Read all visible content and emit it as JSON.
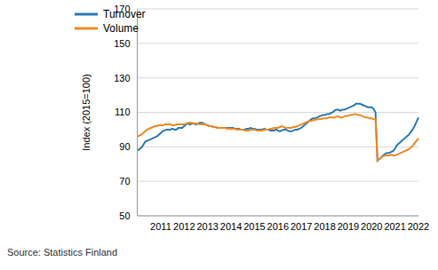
{
  "chart_data": {
    "type": "line",
    "y_label": "Index (2015=100)",
    "source": "Source: Statistics Finland",
    "legend": "upper left",
    "grid": true,
    "ylim": [
      50,
      170
    ],
    "yticks": [
      50,
      70,
      90,
      110,
      130,
      150,
      170
    ],
    "categories": [
      null,
      null,
      null,
      null,
      null,
      null,
      null,
      null,
      null,
      null,
      null,
      null,
      "2011",
      null,
      null,
      null,
      null,
      null,
      null,
      null,
      null,
      null,
      null,
      null,
      "2012",
      null,
      null,
      null,
      null,
      null,
      null,
      null,
      null,
      null,
      null,
      null,
      "2013",
      null,
      null,
      null,
      null,
      null,
      null,
      null,
      null,
      null,
      null,
      null,
      "2014",
      null,
      null,
      null,
      null,
      null,
      null,
      null,
      null,
      null,
      null,
      null,
      "2015",
      null,
      null,
      null,
      null,
      null,
      null,
      null,
      null,
      null,
      null,
      null,
      "2016",
      null,
      null,
      null,
      null,
      null,
      null,
      null,
      null,
      null,
      null,
      null,
      "2017",
      null,
      null,
      null,
      null,
      null,
      null,
      null,
      null,
      null,
      null,
      null,
      "2018",
      null,
      null,
      null,
      null,
      null,
      null,
      null,
      null,
      null,
      null,
      null,
      "2019",
      null,
      null,
      null,
      null,
      null,
      null,
      null,
      null,
      null,
      null,
      null,
      "2020",
      null,
      null,
      null,
      null,
      null,
      null,
      null,
      null,
      null,
      null,
      null,
      "2021",
      null,
      null,
      null,
      null,
      null,
      null,
      null,
      null,
      null,
      null,
      null,
      "2022"
    ],
    "series": [
      {
        "name": "Turnover",
        "color": "#2a7ab9",
        "values": [
          88,
          88.5,
          89.5,
          91,
          93,
          93.5,
          94,
          94.5,
          95,
          95.5,
          96,
          97,
          98,
          99,
          99.5,
          100,
          100,
          100,
          100.5,
          100,
          100,
          101,
          101,
          101,
          102,
          103,
          103.5,
          103,
          103.5,
          103.5,
          103,
          103.5,
          104,
          104,
          103.5,
          103,
          102.5,
          102,
          102,
          101.5,
          101.5,
          101,
          101,
          101,
          101,
          101,
          101,
          101,
          101,
          101,
          100.5,
          100.5,
          100.5,
          100,
          100,
          100,
          100.5,
          100.5,
          101,
          100.5,
          100.5,
          100,
          100,
          100,
          100,
          100.5,
          100,
          100,
          99.5,
          99.5,
          99.5,
          100,
          99.5,
          99,
          99.5,
          100,
          100,
          99.5,
          99,
          99,
          99.5,
          100,
          100,
          100.5,
          101,
          102,
          103,
          104,
          105,
          106,
          106.5,
          106.5,
          107,
          107.5,
          108,
          108.5,
          108.5,
          109,
          109,
          109.5,
          110,
          111,
          111.5,
          111.5,
          111,
          111.5,
          111.5,
          112,
          112.5,
          113,
          113.5,
          114,
          115,
          115,
          115,
          114.5,
          114,
          113.5,
          113,
          113,
          113,
          112,
          110,
          82,
          83,
          84,
          85,
          86,
          86.5,
          86.5,
          87,
          87.5,
          89,
          91,
          92,
          93,
          94,
          95,
          96,
          97,
          98.5,
          100,
          102,
          104.5,
          107
        ]
      },
      {
        "name": "Volume",
        "color": "#f08a24",
        "values": [
          96,
          96.5,
          97,
          98,
          99,
          100,
          100.5,
          101,
          101.5,
          102,
          102,
          102.5,
          102.5,
          102.5,
          103,
          103,
          103,
          103,
          102.5,
          102.5,
          103,
          103,
          103,
          103,
          103,
          103.5,
          104,
          104,
          104,
          103.5,
          103.5,
          103.5,
          103,
          103,
          103,
          103,
          102.5,
          102,
          102,
          101.5,
          101.5,
          101,
          101,
          101,
          101,
          101,
          100.5,
          100.5,
          100.5,
          100.5,
          100.5,
          100,
          100,
          100,
          100,
          99.5,
          99.5,
          99.5,
          100,
          100,
          100,
          99.5,
          99.5,
          99.5,
          99.5,
          100,
          100,
          100,
          100.5,
          100.5,
          101,
          101,
          101,
          101.5,
          102,
          101.5,
          101,
          101,
          101,
          101,
          101.5,
          101.5,
          102,
          102.5,
          103,
          103.5,
          104,
          104.5,
          105,
          105,
          105.5,
          105.5,
          106,
          106,
          106,
          106.5,
          106.5,
          106.5,
          107,
          107,
          107,
          107,
          107.5,
          107.5,
          107,
          107,
          107.5,
          108,
          108,
          108.5,
          108.5,
          109,
          109,
          108.5,
          108.5,
          108,
          107.5,
          107,
          107,
          106.5,
          106.5,
          106,
          106,
          82,
          83,
          84,
          84.5,
          85,
          85,
          85,
          85.5,
          85,
          85,
          85.5,
          86,
          86.5,
          87,
          87.5,
          88,
          88.5,
          89.5,
          90.5,
          92,
          93.5,
          95
        ]
      }
    ]
  }
}
